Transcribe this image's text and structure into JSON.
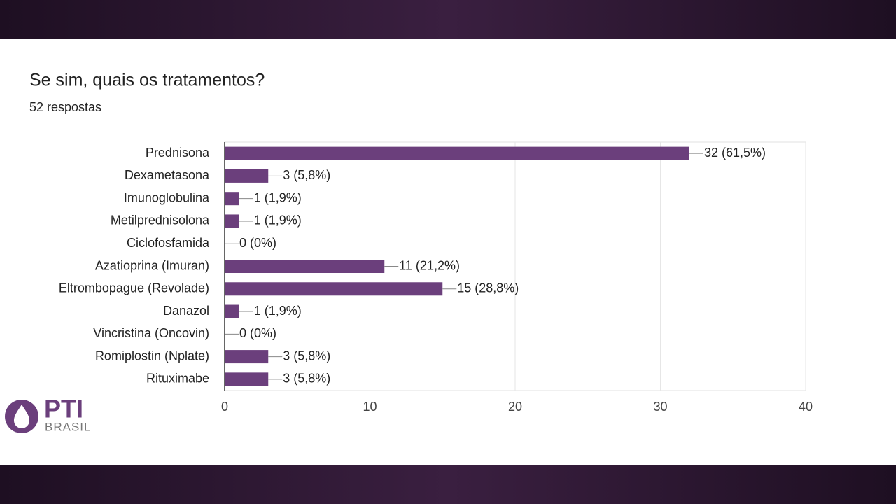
{
  "chart_data": {
    "type": "bar",
    "orientation": "horizontal",
    "title": "Se sim, quais os tratamentos?",
    "subtitle": "52 respostas",
    "categories": [
      "Prednisona",
      "Dexametasona",
      "Imunoglobulina",
      "Metilprednisolona",
      "Ciclofosfamida",
      "Azatioprina (Imuran)",
      "Eltrombopague (Revolade)",
      "Danazol",
      "Vincristina (Oncovin)",
      "Romiplostin (Nplate)",
      "Rituximabe"
    ],
    "values": [
      32,
      3,
      1,
      1,
      0,
      11,
      15,
      1,
      0,
      3,
      3
    ],
    "value_labels": [
      "32 (61,5%)",
      "3 (5,8%)",
      "1 (1,9%)",
      "1 (1,9%)",
      "0 (0%)",
      "11 (21,2%)",
      "15 (28,8%)",
      "1 (1,9%)",
      "0 (0%)",
      "3 (5,8%)",
      "3 (5,8%)"
    ],
    "color": "#6b3f7c",
    "xlim": [
      0,
      40
    ],
    "xticks": [
      0,
      10,
      20,
      30,
      40
    ],
    "grid": true
  },
  "logo": {
    "title": "PTI",
    "subtitle": "BRASIL"
  }
}
